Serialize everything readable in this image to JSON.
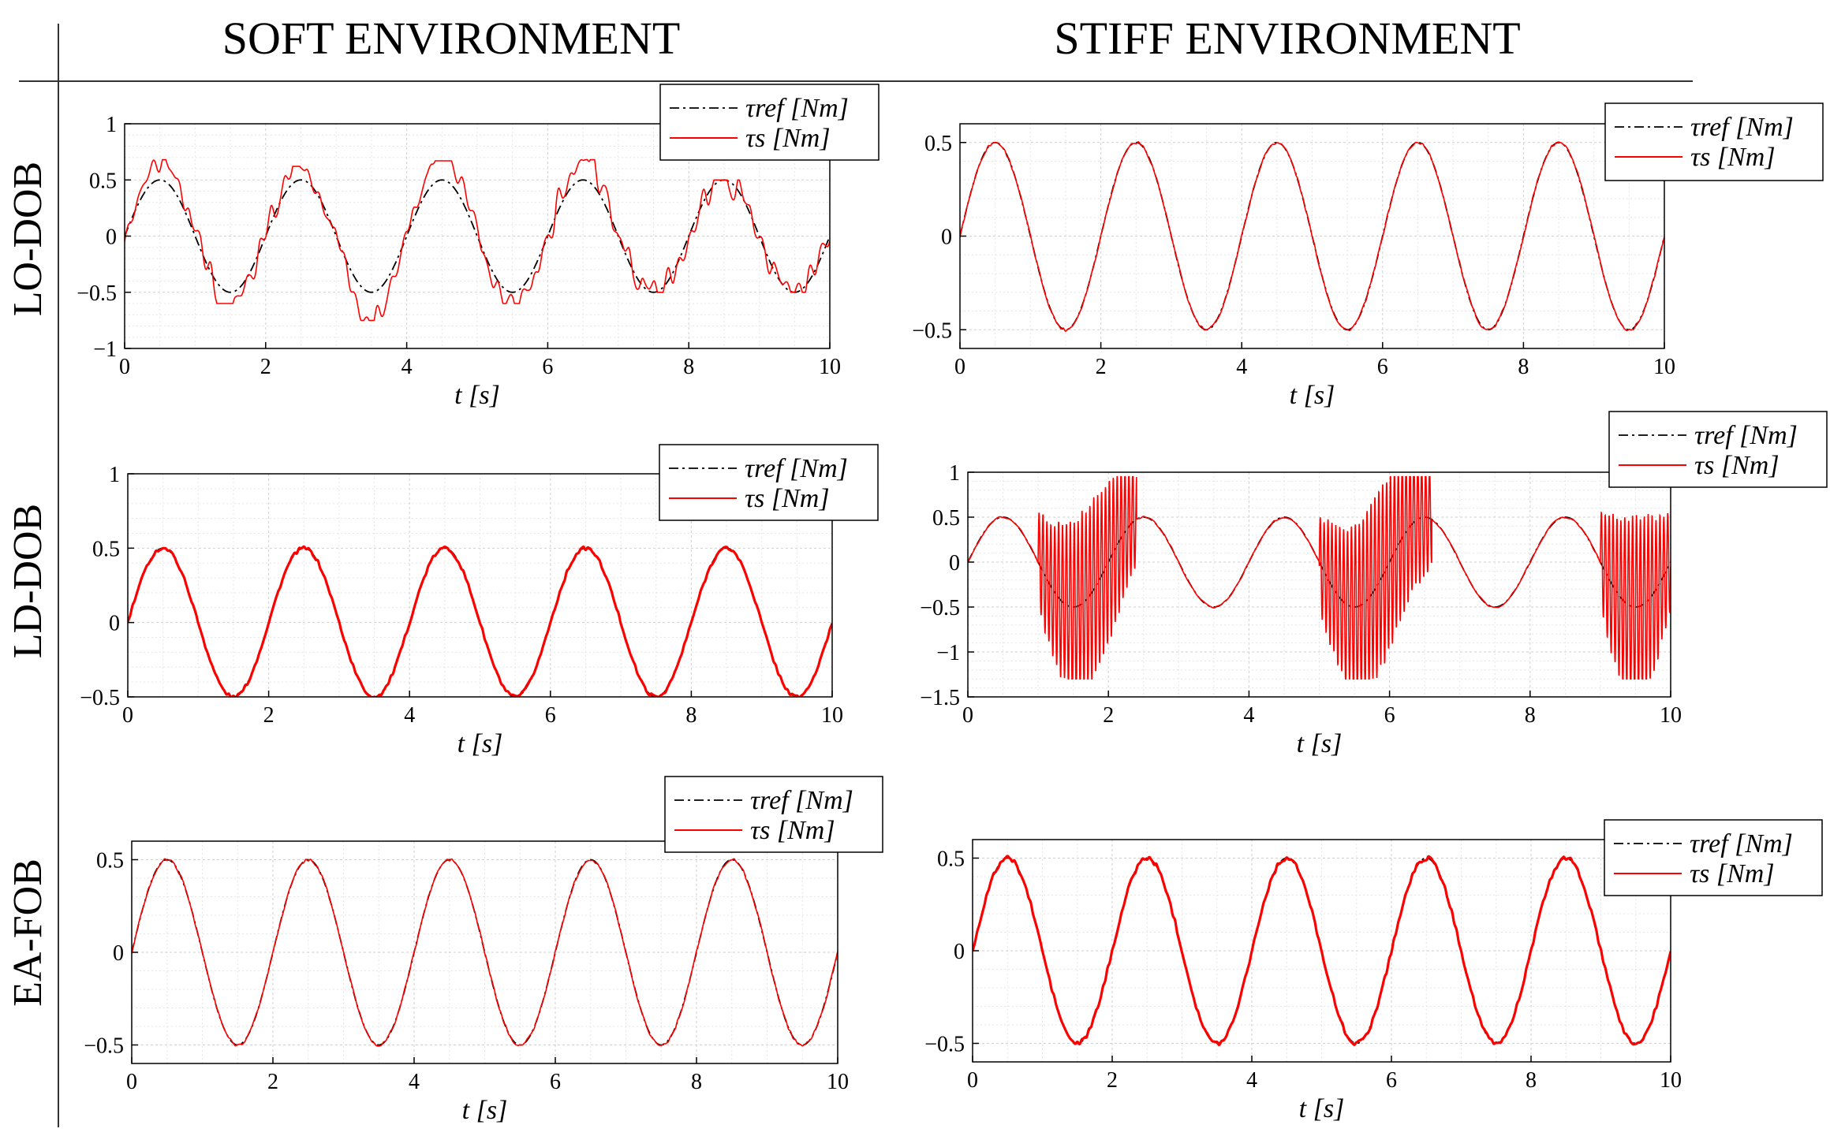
{
  "figure": {
    "column_headers": [
      "SOFT ENVIRONMENT",
      "STIFF ENVIRONMENT"
    ],
    "row_headers": [
      "LO-DOB",
      "LD-DOB",
      "EA-FOB"
    ]
  },
  "colors": {
    "reference": "#000000",
    "measured": "#ff0000",
    "grid": "#d9d9d9",
    "axis": "#000000"
  },
  "chart_data": [
    {
      "type": "line",
      "panel": "LO-DOB / SOFT ENVIRONMENT",
      "xlabel": "t [s]",
      "xlim": [
        0,
        10
      ],
      "ylim": [
        -1,
        1
      ],
      "xticks": [
        0,
        2,
        4,
        6,
        8,
        10
      ],
      "yticks": [
        -1,
        -0.5,
        0,
        0.5,
        1
      ],
      "ytick_labels": [
        "−1",
        "−0.5",
        "0",
        "0.5",
        "1"
      ],
      "legend": [
        "τref [Nm]",
        "τs [Nm]"
      ],
      "legend_position": "top-right",
      "reference": {
        "name": "τref [Nm]",
        "style": "dash-dot",
        "amplitude": 0.5,
        "period_s": 2
      },
      "measured": {
        "name": "τs [Nm]",
        "style": "solid",
        "peaks": [
          0.68,
          0.62,
          0.67,
          0.68,
          0.5
        ],
        "troughs": [
          -0.6,
          -0.75,
          -0.6,
          -0.5,
          -0.5
        ]
      }
    },
    {
      "type": "line",
      "panel": "LO-DOB / STIFF ENVIRONMENT",
      "xlabel": "t [s]",
      "xlim": [
        0,
        10
      ],
      "ylim": [
        -0.6,
        0.6
      ],
      "xticks": [
        0,
        2,
        4,
        6,
        8,
        10
      ],
      "yticks": [
        -0.5,
        0,
        0.5
      ],
      "ytick_labels": [
        "−0.5",
        "0",
        "0.5"
      ],
      "legend": [
        "τref [Nm]",
        "τs [Nm]"
      ],
      "legend_position": "top-right",
      "reference": {
        "name": "τref [Nm]",
        "style": "dash-dot",
        "amplitude": 0.5,
        "period_s": 2
      },
      "measured": {
        "name": "τs [Nm]",
        "style": "solid",
        "amplitude": 0.5,
        "period_s": 2
      }
    },
    {
      "type": "line",
      "panel": "LD-DOB / SOFT ENVIRONMENT",
      "xlabel": "t [s]",
      "xlim": [
        0,
        10
      ],
      "ylim": [
        -0.5,
        1
      ],
      "xticks": [
        0,
        2,
        4,
        6,
        8,
        10
      ],
      "yticks": [
        -0.5,
        0,
        0.5,
        1
      ],
      "ytick_labels": [
        "−0.5",
        "0",
        "0.5",
        "1"
      ],
      "legend": [
        "τref [Nm]",
        "τs [Nm]"
      ],
      "legend_position": "top-right",
      "reference": {
        "name": "τref [Nm]",
        "style": "dash-dot",
        "amplitude": 0.5,
        "period_s": 2
      },
      "measured": {
        "name": "τs [Nm]",
        "style": "solid",
        "amplitude": 0.5,
        "period_s": 2
      }
    },
    {
      "type": "line",
      "panel": "LD-DOB / STIFF ENVIRONMENT",
      "xlabel": "t [s]",
      "xlim": [
        0,
        10
      ],
      "ylim": [
        -1.5,
        1
      ],
      "xticks": [
        0,
        2,
        4,
        6,
        8,
        10
      ],
      "yticks": [
        -1.5,
        -1,
        -0.5,
        0,
        0.5,
        1
      ],
      "ytick_labels": [
        "−1.5",
        "−1",
        "−0.5",
        "0",
        "0.5",
        "1"
      ],
      "legend": [
        "τref [Nm]",
        "τs [Nm]"
      ],
      "legend_position": "top-right",
      "reference": {
        "name": "τref [Nm]",
        "style": "dash-dot",
        "amplitude": 0.5,
        "period_s": 2
      },
      "measured": {
        "name": "τs [Nm]",
        "style": "solid",
        "amplitude": 0.5,
        "period_s": 2,
        "oscillation_intervals_s": [
          [
            1.0,
            2.4
          ],
          [
            5.0,
            6.6
          ],
          [
            9.0,
            10.0
          ]
        ],
        "oscillation_range": [
          -1.3,
          0.95
        ]
      }
    },
    {
      "type": "line",
      "panel": "EA-FOB / SOFT ENVIRONMENT",
      "xlabel": "t [s]",
      "xlim": [
        0,
        10
      ],
      "ylim": [
        -0.6,
        0.6
      ],
      "xticks": [
        0,
        2,
        4,
        6,
        8,
        10
      ],
      "yticks": [
        -0.5,
        0,
        0.5
      ],
      "ytick_labels": [
        "−0.5",
        "0",
        "0.5"
      ],
      "legend": [
        "τref [Nm]",
        "τs [Nm]"
      ],
      "legend_position": "top-right",
      "reference": {
        "name": "τref [Nm]",
        "style": "dash-dot",
        "amplitude": 0.5,
        "period_s": 2
      },
      "measured": {
        "name": "τs [Nm]",
        "style": "solid",
        "amplitude": 0.5,
        "period_s": 2
      }
    },
    {
      "type": "line",
      "panel": "EA-FOB / STIFF ENVIRONMENT",
      "xlabel": "t [s]",
      "xlim": [
        0,
        10
      ],
      "ylim": [
        -0.6,
        0.6
      ],
      "xticks": [
        0,
        2,
        4,
        6,
        8,
        10
      ],
      "yticks": [
        -0.5,
        0,
        0.5
      ],
      "ytick_labels": [
        "−0.5",
        "0",
        "0.5"
      ],
      "legend": [
        "τref [Nm]",
        "τs [Nm]"
      ],
      "legend_position": "top-right",
      "reference": {
        "name": "τref [Nm]",
        "style": "dash-dot",
        "amplitude": 0.5,
        "period_s": 2
      },
      "measured": {
        "name": "τs [Nm]",
        "style": "solid",
        "amplitude": 0.5,
        "period_s": 2
      }
    }
  ]
}
